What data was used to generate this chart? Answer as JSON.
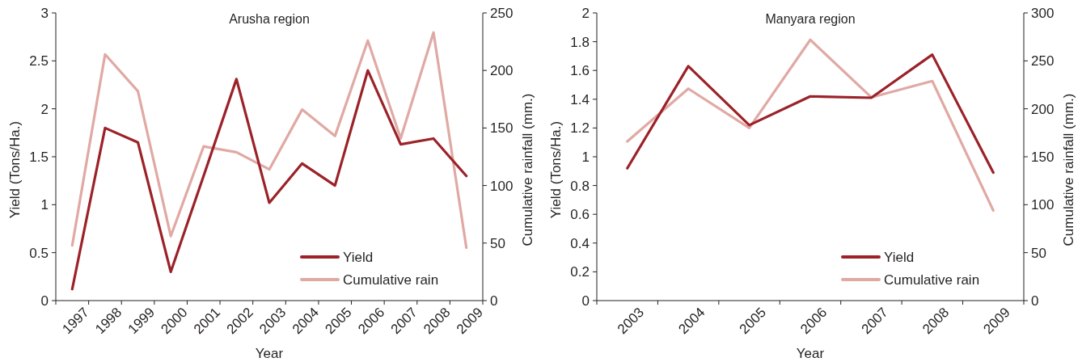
{
  "chart_data": [
    {
      "type": "line",
      "title": "Arusha region",
      "xlabel": "Year",
      "ylabel": "Yield (Tons/Ha.)",
      "y2label": "Cumulative rainfall (mm.)",
      "categories": [
        "1997",
        "1998",
        "1999",
        "2000",
        "2001",
        "2002",
        "2003",
        "2004",
        "2005",
        "2006",
        "2007",
        "2008",
        "2009"
      ],
      "series": [
        {
          "name": "Yield",
          "color": "#9b2228",
          "values": [
            0.12,
            1.8,
            1.65,
            0.3,
            1.3,
            2.31,
            1.02,
            1.43,
            1.2,
            2.4,
            1.63,
            1.69,
            1.3
          ]
        },
        {
          "name": "Cumulative rain",
          "color": "#e0a9a4",
          "axis": "y2",
          "values": [
            48,
            214,
            182,
            56,
            134,
            129,
            114,
            166,
            143,
            226,
            141,
            233,
            46
          ]
        }
      ],
      "ylim": [
        0,
        3
      ],
      "yticks": [
        0,
        0.5,
        1,
        1.5,
        2,
        2.5,
        3
      ],
      "y2lim": [
        0,
        250
      ],
      "y2ticks": [
        0,
        50,
        100,
        150,
        200,
        250
      ],
      "legend": "bottom right"
    },
    {
      "type": "line",
      "title": "Manyara region",
      "xlabel": "Year",
      "ylabel": "Yield (Tons/Ha.)",
      "y2label": "Cumulative rainfall (mm.)",
      "categories": [
        "2003",
        "2004",
        "2005",
        "2006",
        "2007",
        "2008",
        "2009"
      ],
      "series": [
        {
          "name": "Yield",
          "color": "#9b2228",
          "values": [
            0.92,
            1.63,
            1.22,
            1.42,
            1.41,
            1.71,
            0.89
          ]
        },
        {
          "name": "Cumulative rain",
          "color": "#e0a9a4",
          "axis": "y2",
          "values": [
            166,
            221,
            180,
            272,
            212,
            229,
            94
          ]
        }
      ],
      "ylim": [
        0,
        2
      ],
      "yticks": [
        0,
        0.2,
        0.4,
        0.6,
        0.8,
        1,
        1.2,
        1.4,
        1.6,
        1.8,
        2
      ],
      "y2lim": [
        0,
        300
      ],
      "y2ticks": [
        0,
        50,
        100,
        150,
        200,
        250,
        300
      ],
      "legend": "bottom right"
    }
  ]
}
